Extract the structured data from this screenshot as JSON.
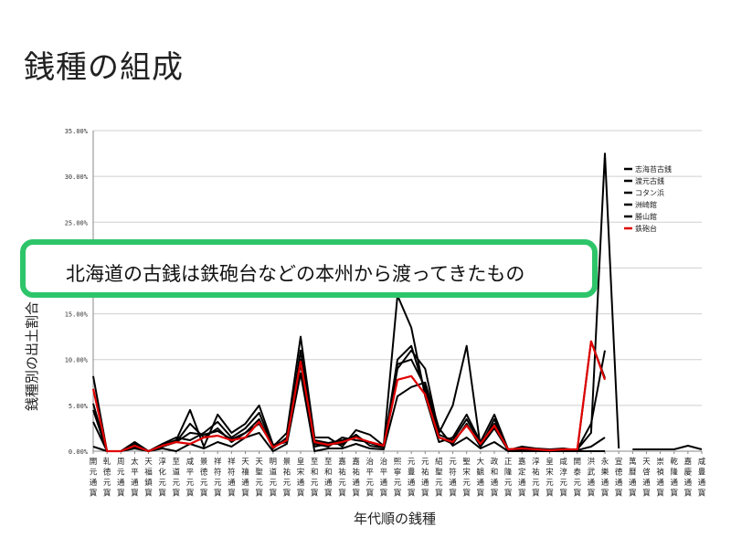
{
  "slide": {
    "title": "銭種の組成",
    "callout_text": "北海道の古銭は鉄砲台などの本州から渡ってきたもの",
    "callout_color": "#2ec56a"
  },
  "chart_data": {
    "type": "line",
    "title": "",
    "xlabel": "年代順の銭種",
    "ylabel": "銭種別の出土割合",
    "ylim": [
      0,
      35
    ],
    "yticks": [
      "0.00%",
      "5.00%",
      "10.00%",
      "15.00%",
      "20.00%",
      "25.00%",
      "30.00%",
      "35.00%"
    ],
    "grid": "horizontal",
    "legend_position": "right",
    "categories": [
      "開元通寳",
      "乹徳元寳",
      "周元通寳",
      "太平通寳",
      "天福鎮寳",
      "淳化元寳",
      "至道元寳",
      "咸平元寳",
      "景徳元寳",
      "祥符元寳",
      "祥符通寳",
      "天禧通寳",
      "天聖元寳",
      "明道元寳",
      "景祐元寳",
      "皇宋通寳",
      "至和元寳",
      "至和通寳",
      "嘉祐元寳",
      "嘉祐通寳",
      "治平元寳",
      "治平通寳",
      "熙寧元寳",
      "元豊通寳",
      "元祐通寳",
      "紹聖元寳",
      "元符通寳",
      "聖宋元寳",
      "大観通寳",
      "政和通寳",
      "正隆元寳",
      "嘉定通寳",
      "淳祐元寳",
      "皇宋元寳",
      "咸淳元寳",
      "開泰元寳",
      "洪武通寳",
      "永樂通寳",
      "宣徳通寳",
      "萬暦通寳",
      "天啓通寳",
      "崇禎通寳",
      "乾隆通寳",
      "嘉慶通寳",
      "咸豊通寳"
    ],
    "series": [
      {
        "name": "志海苔古銭",
        "color": "#000000",
        "values": [
          8.2,
          0,
          0,
          1.0,
          0,
          0.8,
          1.5,
          1.2,
          2.0,
          3.2,
          1.5,
          2.5,
          4.2,
          0.5,
          2.0,
          12.5,
          1.5,
          1.5,
          0.5,
          2.3,
          1.8,
          0.6,
          17.0,
          13.5,
          6.0,
          1.0,
          1.5,
          4.0,
          1.0,
          4.0,
          0.2,
          0.3,
          0.1,
          0,
          0.1,
          0.2,
          2.0,
          32.5,
          0.3,
          null,
          null,
          null,
          null,
          null,
          null
        ]
      },
      {
        "name": "渡元古銭",
        "color": "#000000",
        "values": [
          5.2,
          0,
          0,
          0.5,
          0,
          0.7,
          1.2,
          4.5,
          0.5,
          4.0,
          2.0,
          3.0,
          5.0,
          0.7,
          1.0,
          11.0,
          0.8,
          0.5,
          1.5,
          1.2,
          1.0,
          0.5,
          9.0,
          11.0,
          9.0,
          2.0,
          5.0,
          11.5,
          0.5,
          3.5,
          0.1,
          0.5,
          0.3,
          0.2,
          0.3,
          0.1,
          12.0,
          8.0,
          null,
          null,
          null,
          null,
          null,
          null,
          null
        ]
      },
      {
        "name": "コタン浜",
        "color": "#000000",
        "values": [
          3.2,
          0,
          0,
          0.8,
          0,
          0.5,
          1.0,
          3.0,
          1.5,
          2.5,
          1.0,
          2.0,
          3.5,
          0.3,
          1.5,
          10.0,
          0.5,
          0.8,
          0.8,
          1.8,
          0.6,
          0.4,
          10.0,
          11.5,
          6.5,
          1.5,
          0.8,
          3.0,
          0.5,
          2.5,
          0.1,
          0.2,
          0.1,
          0,
          0.1,
          0.1,
          0.5,
          1.5,
          null,
          null,
          null,
          null,
          null,
          null,
          null
        ]
      },
      {
        "name": "洲崎館",
        "color": "#000000",
        "values": [
          0.5,
          0,
          0,
          0.3,
          0,
          0.3,
          0,
          0.8,
          0.3,
          1.0,
          0.5,
          1.5,
          2.0,
          0,
          0.8,
          8.5,
          0,
          0.3,
          0.3,
          0.8,
          0.3,
          0.2,
          6.0,
          7.0,
          7.5,
          2.5,
          0.6,
          1.5,
          0.3,
          1.0,
          0,
          0,
          0,
          0,
          0,
          0,
          0,
          0,
          null,
          0.2,
          0.2,
          0.2,
          0.2,
          0.6,
          0.2
        ]
      },
      {
        "name": "勝山館",
        "color": "#000000",
        "values": [
          4.5,
          0,
          0,
          0.5,
          0,
          0.6,
          1.0,
          2.0,
          1.8,
          2.2,
          1.3,
          2.0,
          3.0,
          0.6,
          1.3,
          9.5,
          1.2,
          0.9,
          1.2,
          1.6,
          0.9,
          0.5,
          9.5,
          10.0,
          7.0,
          1.8,
          1.2,
          3.5,
          0.8,
          3.0,
          0.2,
          0.3,
          0.2,
          0.1,
          0.2,
          0.2,
          3.0,
          11.0,
          null,
          null,
          null,
          null,
          null,
          null,
          null
        ]
      },
      {
        "name": "鉄砲台",
        "color": "#e00000",
        "values": [
          6.8,
          0,
          0,
          0.6,
          0,
          0.6,
          1.0,
          0.8,
          1.5,
          1.7,
          1.2,
          1.5,
          3.2,
          0.4,
          1.2,
          9.8,
          1.0,
          0.7,
          1.0,
          1.5,
          1.0,
          0.6,
          7.8,
          8.2,
          6.2,
          1.5,
          1.0,
          2.8,
          0.8,
          2.8,
          0.2,
          0.3,
          0.2,
          0.1,
          0.2,
          0.2,
          12.0,
          7.8,
          null,
          null,
          null,
          null,
          null,
          null,
          null
        ]
      }
    ]
  }
}
